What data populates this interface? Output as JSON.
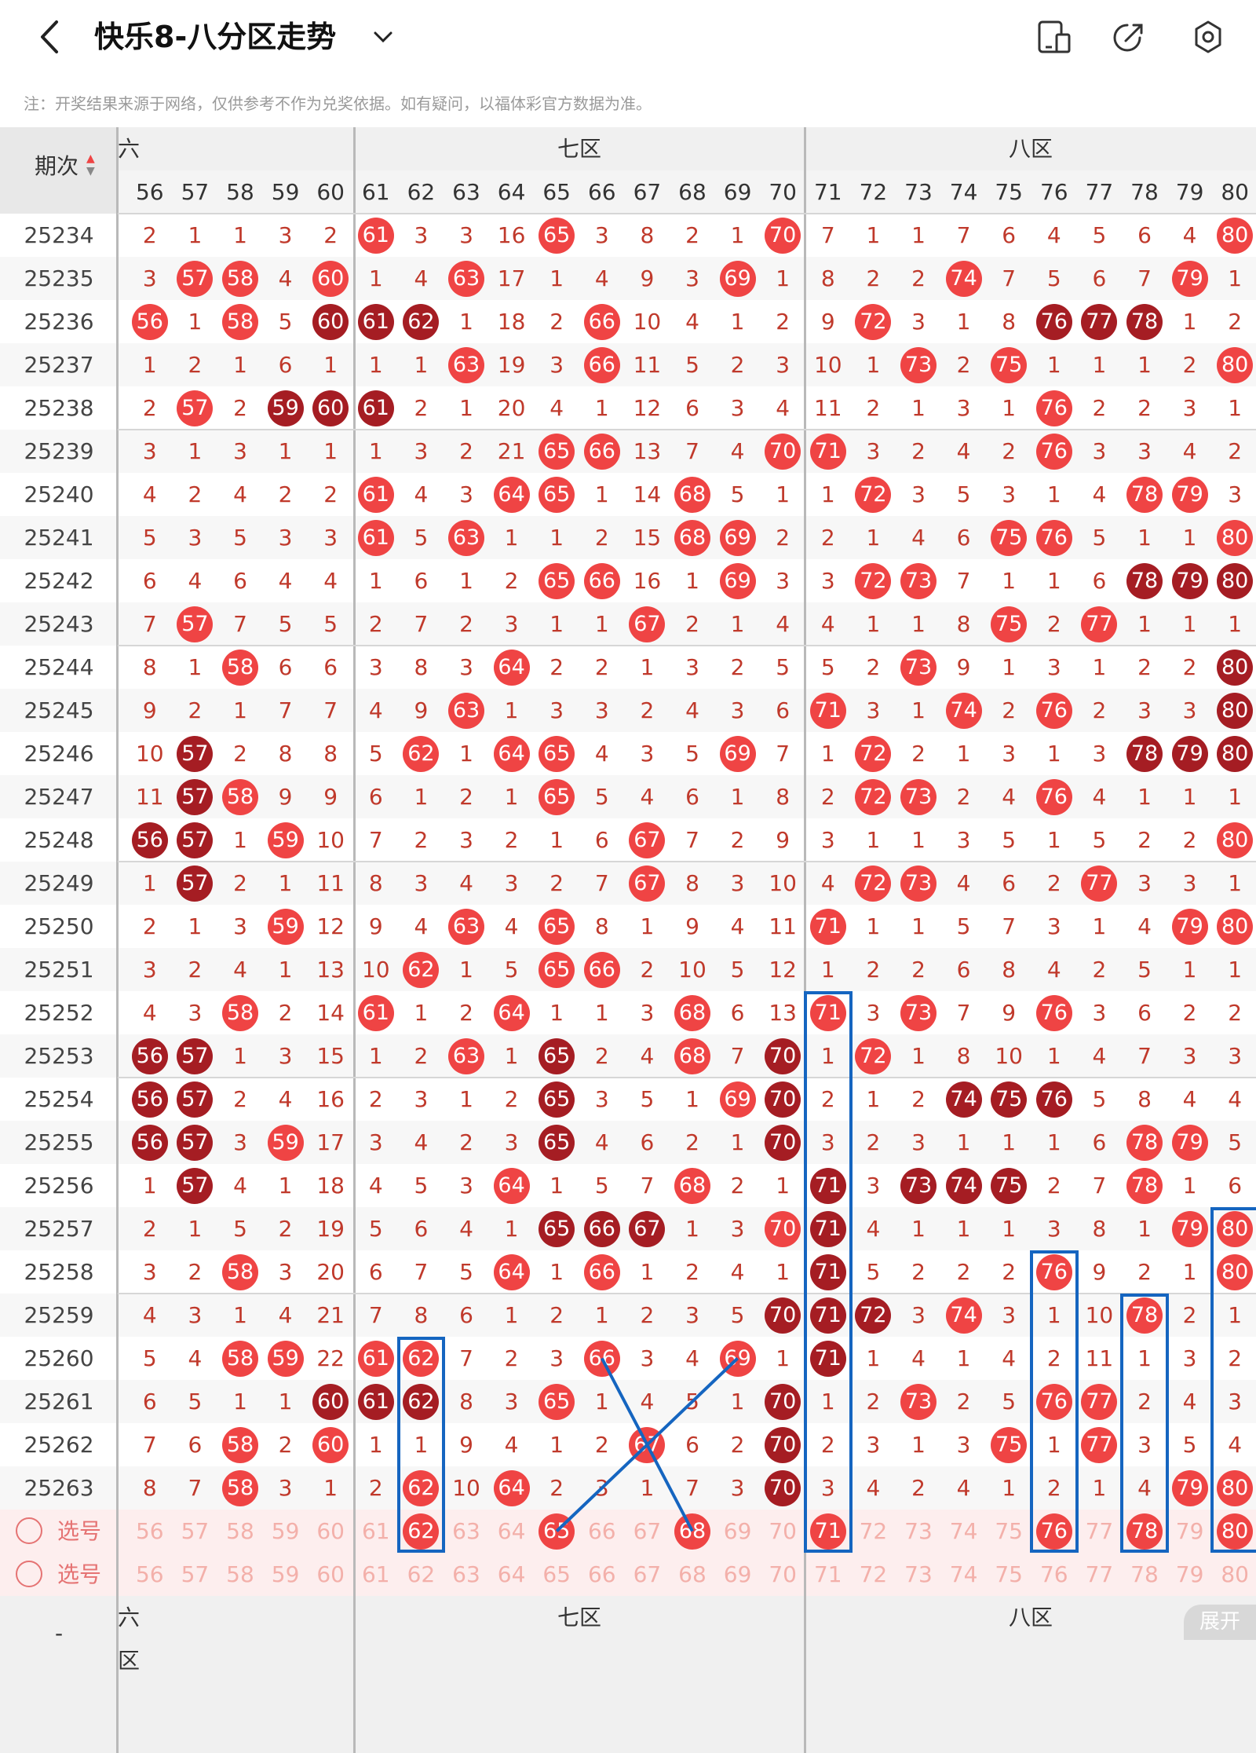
{
  "header": {
    "title": "快乐8-八分区走势",
    "back_icon": "back-arrow-icon",
    "dropdown_icon": "chevron-down-icon",
    "icons": [
      "phone-layout-icon",
      "share-icon",
      "settings-icon"
    ]
  },
  "note": "注：开奖结果来源于网络，仅供参考不作为兑奖依据。如有疑问，以福体彩官方数据为准。",
  "issue_header": "期次",
  "zones": {
    "z6": "六区",
    "z7": "七区",
    "z8": "八区"
  },
  "columns": [
    "56",
    "57",
    "58",
    "59",
    "60",
    "61",
    "62",
    "63",
    "64",
    "65",
    "66",
    "67",
    "68",
    "69",
    "70",
    "71",
    "72",
    "73",
    "74",
    "75",
    "76",
    "77",
    "78",
    "79",
    "80"
  ],
  "rows": [
    {
      "issue": "25234",
      "cells": [
        "2",
        "1",
        "1",
        "3",
        "2",
        "61r",
        "3",
        "3",
        "16",
        "65r",
        "3",
        "8",
        "2",
        "1",
        "70r",
        "7",
        "1",
        "1",
        "7",
        "6",
        "4",
        "5",
        "6",
        "4",
        "80r"
      ]
    },
    {
      "issue": "25235",
      "cells": [
        "3",
        "57r",
        "58r",
        "4",
        "60r",
        "1",
        "4",
        "63r",
        "17",
        "1",
        "4",
        "9",
        "3",
        "69r",
        "1",
        "8",
        "2",
        "2",
        "74r",
        "7",
        "5",
        "6",
        "7",
        "79r",
        "1"
      ]
    },
    {
      "issue": "25236",
      "cells": [
        "56r",
        "1",
        "58r",
        "5",
        "60d",
        "61d",
        "62d",
        "1",
        "18",
        "2",
        "66r",
        "10",
        "4",
        "1",
        "2",
        "9",
        "72r",
        "3",
        "1",
        "8",
        "76d",
        "77d",
        "78d",
        "1",
        "2"
      ]
    },
    {
      "issue": "25237",
      "cells": [
        "1",
        "2",
        "1",
        "6",
        "1",
        "1",
        "1",
        "63r",
        "19",
        "3",
        "66r",
        "11",
        "5",
        "2",
        "3",
        "10",
        "1",
        "73r",
        "2",
        "75r",
        "1",
        "1",
        "1",
        "2",
        "80r"
      ]
    },
    {
      "issue": "25238",
      "cells": [
        "2",
        "57r",
        "2",
        "59d",
        "60d",
        "61d",
        "2",
        "1",
        "20",
        "4",
        "1",
        "12",
        "6",
        "3",
        "4",
        "11",
        "2",
        "1",
        "3",
        "1",
        "76r",
        "2",
        "2",
        "3",
        "1"
      ]
    },
    {
      "issue": "25239",
      "cells": [
        "3",
        "1",
        "3",
        "1",
        "1",
        "1",
        "3",
        "2",
        "21",
        "65r",
        "66r",
        "13",
        "7",
        "4",
        "70r",
        "71r",
        "3",
        "2",
        "4",
        "2",
        "76r",
        "3",
        "3",
        "4",
        "2"
      ]
    },
    {
      "issue": "25240",
      "cells": [
        "4",
        "2",
        "4",
        "2",
        "2",
        "61r",
        "4",
        "3",
        "64r",
        "65r",
        "1",
        "14",
        "68r",
        "5",
        "1",
        "1",
        "72r",
        "3",
        "5",
        "3",
        "1",
        "4",
        "78r",
        "79r",
        "3"
      ]
    },
    {
      "issue": "25241",
      "cells": [
        "5",
        "3",
        "5",
        "3",
        "3",
        "61r",
        "5",
        "63r",
        "1",
        "1",
        "2",
        "15",
        "68r",
        "69r",
        "2",
        "2",
        "1",
        "4",
        "6",
        "75r",
        "76r",
        "5",
        "1",
        "1",
        "80r"
      ]
    },
    {
      "issue": "25242",
      "cells": [
        "6",
        "4",
        "6",
        "4",
        "4",
        "1",
        "6",
        "1",
        "2",
        "65r",
        "66r",
        "16",
        "1",
        "69r",
        "3",
        "3",
        "72r",
        "73r",
        "7",
        "1",
        "1",
        "6",
        "78d",
        "79d",
        "80d"
      ]
    },
    {
      "issue": "25243",
      "cells": [
        "7",
        "57r",
        "7",
        "5",
        "5",
        "2",
        "7",
        "2",
        "3",
        "1",
        "1",
        "67r",
        "2",
        "1",
        "4",
        "4",
        "1",
        "1",
        "8",
        "75r",
        "2",
        "77r",
        "1",
        "1",
        "1"
      ]
    },
    {
      "issue": "25244",
      "cells": [
        "8",
        "1",
        "58r",
        "6",
        "6",
        "3",
        "8",
        "3",
        "64r",
        "2",
        "2",
        "1",
        "3",
        "2",
        "5",
        "5",
        "2",
        "73r",
        "9",
        "1",
        "3",
        "1",
        "2",
        "2",
        "80d"
      ]
    },
    {
      "issue": "25245",
      "cells": [
        "9",
        "2",
        "1",
        "7",
        "7",
        "4",
        "9",
        "63r",
        "1",
        "3",
        "3",
        "2",
        "4",
        "3",
        "6",
        "71r",
        "3",
        "1",
        "74r",
        "2",
        "76r",
        "2",
        "3",
        "3",
        "80d"
      ]
    },
    {
      "issue": "25246",
      "cells": [
        "10",
        "57d",
        "2",
        "8",
        "8",
        "5",
        "62r",
        "1",
        "64r",
        "65r",
        "4",
        "3",
        "5",
        "69r",
        "7",
        "1",
        "72r",
        "2",
        "1",
        "3",
        "1",
        "3",
        "78d",
        "79d",
        "80d"
      ]
    },
    {
      "issue": "25247",
      "cells": [
        "11",
        "57d",
        "58r",
        "9",
        "9",
        "6",
        "1",
        "2",
        "1",
        "65r",
        "5",
        "4",
        "6",
        "1",
        "8",
        "2",
        "72r",
        "73r",
        "2",
        "4",
        "76r",
        "4",
        "1",
        "1",
        "1"
      ]
    },
    {
      "issue": "25248",
      "cells": [
        "56d",
        "57d",
        "1",
        "59r",
        "10",
        "7",
        "2",
        "3",
        "2",
        "1",
        "6",
        "67r",
        "7",
        "2",
        "9",
        "3",
        "1",
        "1",
        "3",
        "5",
        "1",
        "5",
        "2",
        "2",
        "80r"
      ]
    },
    {
      "issue": "25249",
      "cells": [
        "1",
        "57d",
        "2",
        "1",
        "11",
        "8",
        "3",
        "4",
        "3",
        "2",
        "7",
        "67r",
        "8",
        "3",
        "10",
        "4",
        "72r",
        "73r",
        "4",
        "6",
        "2",
        "77r",
        "3",
        "3",
        "1"
      ]
    },
    {
      "issue": "25250",
      "cells": [
        "2",
        "1",
        "3",
        "59r",
        "12",
        "9",
        "4",
        "63r",
        "4",
        "65r",
        "8",
        "1",
        "9",
        "4",
        "11",
        "71r",
        "1",
        "1",
        "5",
        "7",
        "3",
        "1",
        "4",
        "79r",
        "80r"
      ]
    },
    {
      "issue": "25251",
      "cells": [
        "3",
        "2",
        "4",
        "1",
        "13",
        "10",
        "62r",
        "1",
        "5",
        "65r",
        "66r",
        "2",
        "10",
        "5",
        "12",
        "1",
        "2",
        "2",
        "6",
        "8",
        "4",
        "2",
        "5",
        "1",
        "1"
      ]
    },
    {
      "issue": "25252",
      "cells": [
        "4",
        "3",
        "58r",
        "2",
        "14",
        "61r",
        "1",
        "2",
        "64r",
        "1",
        "1",
        "3",
        "68r",
        "6",
        "13",
        "71r",
        "3",
        "73r",
        "7",
        "9",
        "76r",
        "3",
        "6",
        "2",
        "2"
      ]
    },
    {
      "issue": "25253",
      "cells": [
        "56d",
        "57d",
        "1",
        "3",
        "15",
        "1",
        "2",
        "63r",
        "1",
        "65d",
        "2",
        "4",
        "68r",
        "7",
        "70d",
        "1",
        "72r",
        "1",
        "8",
        "10",
        "1",
        "4",
        "7",
        "3",
        "3"
      ]
    },
    {
      "issue": "25254",
      "cells": [
        "56d",
        "57d",
        "2",
        "4",
        "16",
        "2",
        "3",
        "1",
        "2",
        "65d",
        "3",
        "5",
        "1",
        "69r",
        "70d",
        "2",
        "1",
        "2",
        "74d",
        "75d",
        "76d",
        "5",
        "8",
        "4",
        "4"
      ]
    },
    {
      "issue": "25255",
      "cells": [
        "56d",
        "57d",
        "3",
        "59r",
        "17",
        "3",
        "4",
        "2",
        "3",
        "65d",
        "4",
        "6",
        "2",
        "1",
        "70d",
        "3",
        "2",
        "3",
        "1",
        "1",
        "1",
        "6",
        "78r",
        "79r",
        "5"
      ]
    },
    {
      "issue": "25256",
      "cells": [
        "1",
        "57d",
        "4",
        "1",
        "18",
        "4",
        "5",
        "3",
        "64r",
        "1",
        "5",
        "7",
        "68r",
        "2",
        "1",
        "71d",
        "3",
        "73d",
        "74d",
        "75d",
        "2",
        "7",
        "78r",
        "1",
        "6"
      ]
    },
    {
      "issue": "25257",
      "cells": [
        "2",
        "1",
        "5",
        "2",
        "19",
        "5",
        "6",
        "4",
        "1",
        "65d",
        "66d",
        "67d",
        "1",
        "3",
        "70r",
        "71d",
        "4",
        "1",
        "1",
        "1",
        "3",
        "8",
        "1",
        "79r",
        "80r"
      ]
    },
    {
      "issue": "25258",
      "cells": [
        "3",
        "2",
        "58r",
        "3",
        "20",
        "6",
        "7",
        "5",
        "64r",
        "1",
        "66r",
        "1",
        "2",
        "4",
        "1",
        "71d",
        "5",
        "2",
        "2",
        "2",
        "76r",
        "9",
        "2",
        "1",
        "80r"
      ]
    },
    {
      "issue": "25259",
      "cells": [
        "4",
        "3",
        "1",
        "4",
        "21",
        "7",
        "8",
        "6",
        "1",
        "2",
        "1",
        "2",
        "3",
        "5",
        "70d",
        "71d",
        "72d",
        "3",
        "74r",
        "3",
        "1",
        "10",
        "78r",
        "2",
        "1"
      ]
    },
    {
      "issue": "25260",
      "cells": [
        "5",
        "4",
        "58r",
        "59r",
        "22",
        "61r",
        "62r",
        "7",
        "2",
        "3",
        "66r",
        "3",
        "4",
        "69r",
        "1",
        "71d",
        "1",
        "4",
        "1",
        "4",
        "2",
        "11",
        "1",
        "3",
        "2"
      ]
    },
    {
      "issue": "25261",
      "cells": [
        "6",
        "5",
        "1",
        "1",
        "60d",
        "61d",
        "62d",
        "8",
        "3",
        "65r",
        "1",
        "4",
        "5",
        "1",
        "70d",
        "1",
        "2",
        "73r",
        "2",
        "5",
        "76r",
        "77r",
        "2",
        "4",
        "3"
      ]
    },
    {
      "issue": "25262",
      "cells": [
        "7",
        "6",
        "58r",
        "2",
        "60r",
        "1",
        "1",
        "9",
        "4",
        "1",
        "2",
        "67r",
        "6",
        "2",
        "70d",
        "2",
        "3",
        "1",
        "3",
        "75r",
        "1",
        "77r",
        "3",
        "5",
        "4"
      ]
    },
    {
      "issue": "25263",
      "cells": [
        "8",
        "7",
        "58r",
        "3",
        "1",
        "2",
        "62r",
        "10",
        "64r",
        "2",
        "3",
        "1",
        "7",
        "3",
        "70d",
        "3",
        "4",
        "2",
        "4",
        "1",
        "2",
        "1",
        "4",
        "79r",
        "80r"
      ]
    }
  ],
  "select_rows": [
    {
      "label": "选号",
      "balls": [
        "62",
        "65",
        "68",
        "71",
        "76",
        "78",
        "80"
      ]
    },
    {
      "label": "选号",
      "balls": []
    }
  ],
  "bottom_button": "展开"
}
